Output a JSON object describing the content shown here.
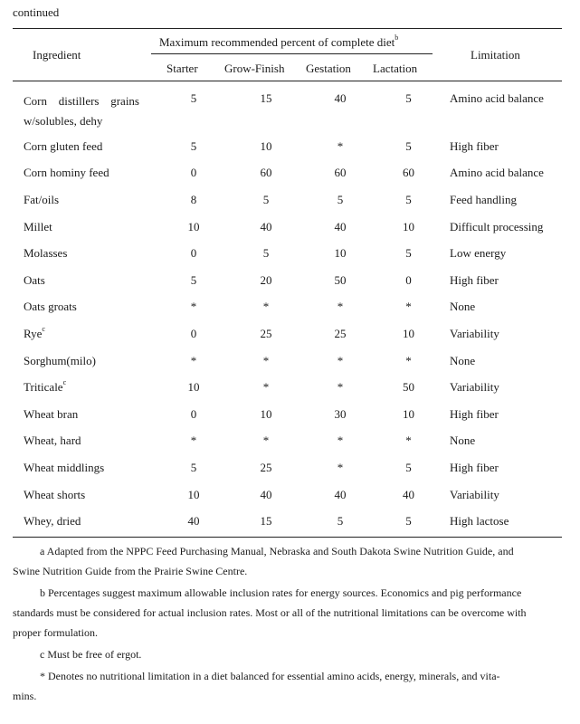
{
  "continued": "continued",
  "header": {
    "ingredient": "Ingredient",
    "group": "Maximum recommended percent of complete diet",
    "group_sup": "b",
    "limitation": "Limitation",
    "columns": [
      "Starter",
      "Grow-Finish",
      "Gestation",
      "Lactation"
    ]
  },
  "rows": [
    {
      "ingredient_l1a": "Corn",
      "ingredient_l1b": "distillers",
      "ingredient_l1c": "grains",
      "ingredient_l2": "w/solubles, dehy",
      "starter": "5",
      "grow": "15",
      "gestation": "40",
      "lactation": "5",
      "limitation": "Amino acid balance"
    },
    {
      "ingredient": "Corn gluten feed",
      "starter": "5",
      "grow": "10",
      "gestation": "*",
      "lactation": "5",
      "limitation": "High fiber"
    },
    {
      "ingredient": "Corn hominy feed",
      "starter": "0",
      "grow": "60",
      "gestation": "60",
      "lactation": "60",
      "limitation": "Amino acid balance"
    },
    {
      "ingredient": "Fat/oils",
      "starter": "8",
      "grow": "5",
      "gestation": "5",
      "lactation": "5",
      "limitation": "Feed handling"
    },
    {
      "ingredient": "Millet",
      "starter": "10",
      "grow": "40",
      "gestation": "40",
      "lactation": "10",
      "limitation": "Difficult processing"
    },
    {
      "ingredient": "Molasses",
      "starter": "0",
      "grow": "5",
      "gestation": "10",
      "lactation": "5",
      "limitation": "Low energy"
    },
    {
      "ingredient": "Oats",
      "starter": "5",
      "grow": "20",
      "gestation": "50",
      "lactation": "0",
      "limitation": "High fiber"
    },
    {
      "ingredient": "Oats groats",
      "starter": "*",
      "grow": "*",
      "gestation": "*",
      "lactation": "*",
      "limitation": "None"
    },
    {
      "ingredient": "Rye",
      "sup": "c",
      "starter": "0",
      "grow": "25",
      "gestation": "25",
      "lactation": "10",
      "limitation": "Variability"
    },
    {
      "ingredient": "Sorghum(milo)",
      "starter": "*",
      "grow": "*",
      "gestation": "*",
      "lactation": "*",
      "limitation": "None"
    },
    {
      "ingredient": "Triticale",
      "sup": "c",
      "starter": "10",
      "grow": "*",
      "gestation": "*",
      "lactation": "50",
      "limitation": "Variability"
    },
    {
      "ingredient": "Wheat bran",
      "starter": "0",
      "grow": "10",
      "gestation": "30",
      "lactation": "10",
      "limitation": "High fiber"
    },
    {
      "ingredient": "Wheat, hard",
      "starter": "*",
      "grow": "*",
      "gestation": "*",
      "lactation": "*",
      "limitation": "None"
    },
    {
      "ingredient": "Wheat middlings",
      "starter": "5",
      "grow": "25",
      "gestation": "*",
      "lactation": "5",
      "limitation": "High fiber"
    },
    {
      "ingredient": "Wheat shorts",
      "starter": "10",
      "grow": "40",
      "gestation": "40",
      "lactation": "40",
      "limitation": "Variability"
    },
    {
      "ingredient": "Whey, dried",
      "starter": "40",
      "grow": "15",
      "gestation": "5",
      "lactation": "5",
      "limitation": "High lactose"
    }
  ],
  "footnotes": {
    "a_l1": "a   Adapted from the NPPC Feed Purchasing Manual, Nebraska and South Dakota Swine Nutrition Guide, and",
    "a_l2": "Swine Nutrition Guide from the Prairie Swine Centre.",
    "b_l1": "b   Percentages suggest maximum allowable inclusion rates for energy sources. Economics and pig performance",
    "b_l2": "standards must be considered for actual inclusion rates. Most or all of the nutritional limitations can be overcome with",
    "b_l3": "proper formulation.",
    "c_l1": "c   Must be free of ergot.",
    "star_l1": "*   Denotes no nutritional limitation in a diet balanced for essential amino acids, energy, minerals, and vita-",
    "star_l2": "mins."
  }
}
